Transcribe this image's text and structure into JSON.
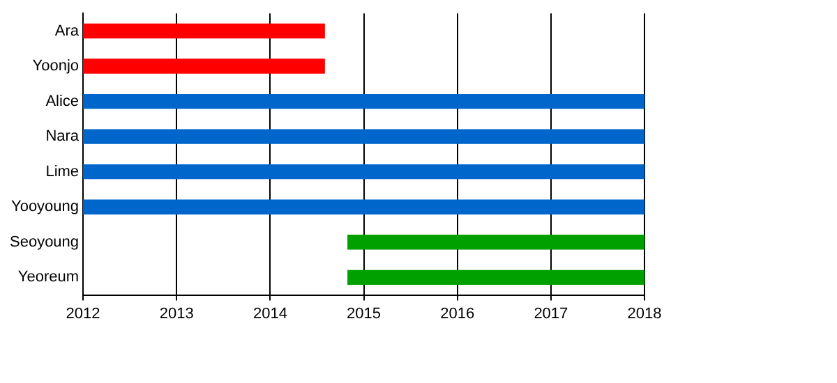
{
  "chart_data": {
    "type": "bar",
    "orientation": "horizontal",
    "categories": [
      "Ara",
      "Yoonjo",
      "Alice",
      "Nara",
      "Lime",
      "Yooyoung",
      "Seoyoung",
      "Yeoreum"
    ],
    "base": [
      2012,
      2012,
      2012,
      2012,
      2012,
      2012,
      2014.83,
      2014.83
    ],
    "values": [
      2.58,
      2.58,
      6,
      6,
      6,
      6,
      3.17,
      3.17
    ],
    "colors": [
      "#ff0000",
      "#ff0000",
      "#0066cc",
      "#0066cc",
      "#0066cc",
      "#0066cc",
      "#00a000",
      "#00a000"
    ],
    "xlim": [
      2012,
      2018
    ],
    "xticks": [
      2012,
      2013,
      2014,
      2015,
      2016,
      2017,
      2018
    ],
    "grid": "x",
    "legend": false
  }
}
